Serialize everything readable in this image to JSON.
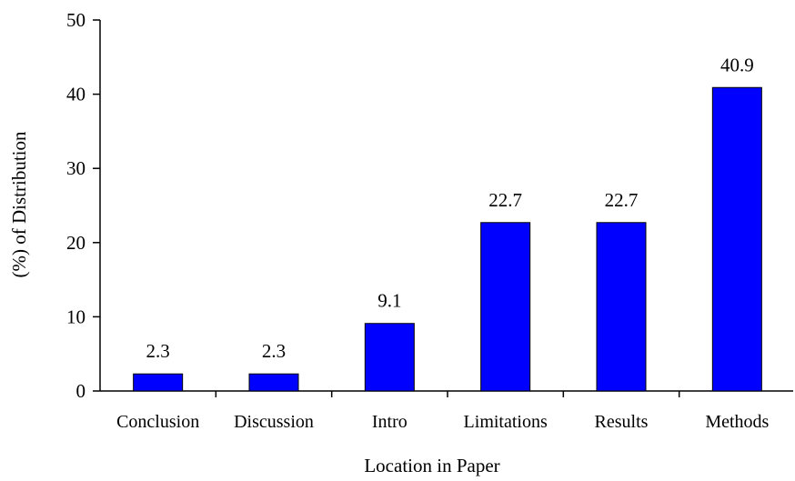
{
  "chart_data": {
    "type": "bar",
    "categories": [
      "Conclusion",
      "Discussion",
      "Intro",
      "Limitations",
      "Results",
      "Methods"
    ],
    "values": [
      2.3,
      2.3,
      9.1,
      22.7,
      22.7,
      40.9
    ],
    "data_labels": [
      "2.3",
      "2.3",
      "9.1",
      "22.7",
      "22.7",
      "40.9"
    ],
    "title": "",
    "xlabel": "Location in Paper",
    "ylabel": "(%)  of  Distribution",
    "ylim": [
      0,
      50
    ],
    "yticks": [
      0,
      10,
      20,
      30,
      40,
      50
    ],
    "grid": false,
    "legend": "none",
    "bar_color": "#0000ff",
    "bar_stroke": "#000000"
  }
}
